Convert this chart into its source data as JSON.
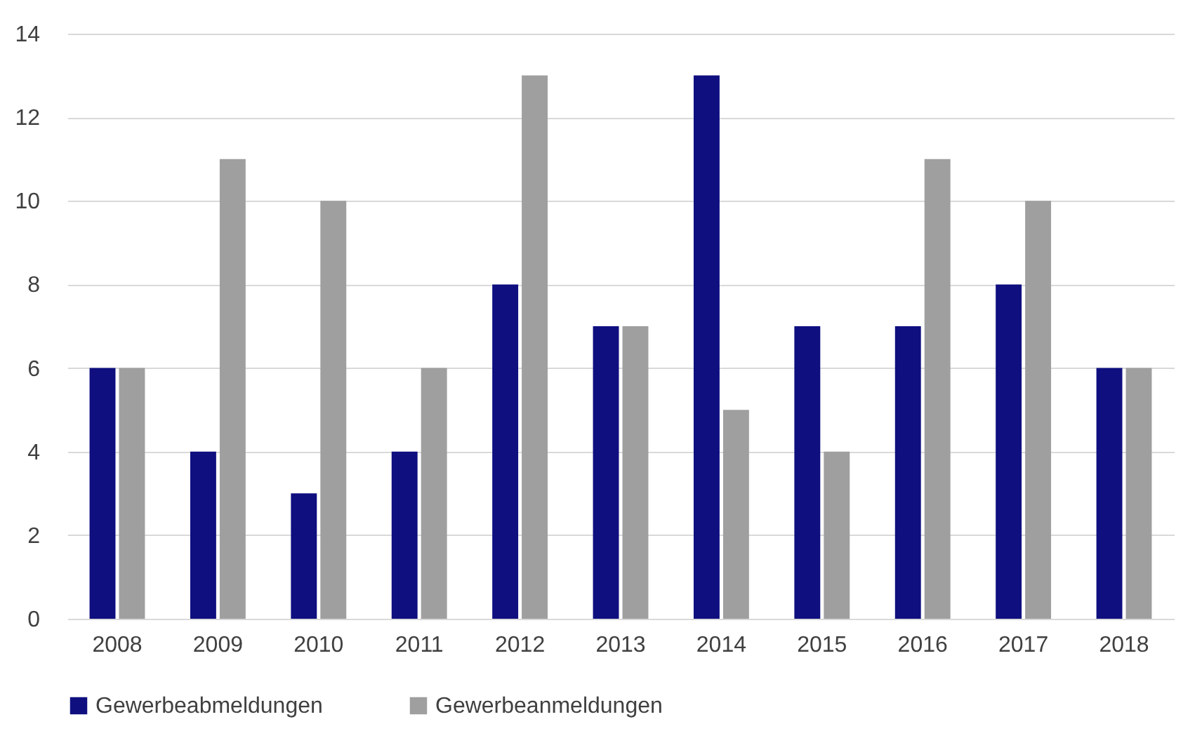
{
  "chart_data": {
    "type": "bar",
    "categories": [
      "2008",
      "2009",
      "2010",
      "2011",
      "2012",
      "2013",
      "2014",
      "2015",
      "2016",
      "2017",
      "2018"
    ],
    "series": [
      {
        "name": "Gewerbeabmeldungen",
        "color": "#0f0f80",
        "values": [
          6,
          4,
          3,
          4,
          8,
          7,
          13,
          7,
          7,
          8,
          6
        ]
      },
      {
        "name": "Gewerbeanmeldungen",
        "color": "#9f9f9f",
        "values": [
          6,
          11,
          10,
          6,
          13,
          7,
          5,
          4,
          11,
          10,
          6
        ]
      }
    ],
    "ylim": [
      0,
      14
    ],
    "yticks": [
      0,
      2,
      4,
      6,
      8,
      10,
      12,
      14
    ],
    "grid": "y",
    "legend": "bottom"
  }
}
